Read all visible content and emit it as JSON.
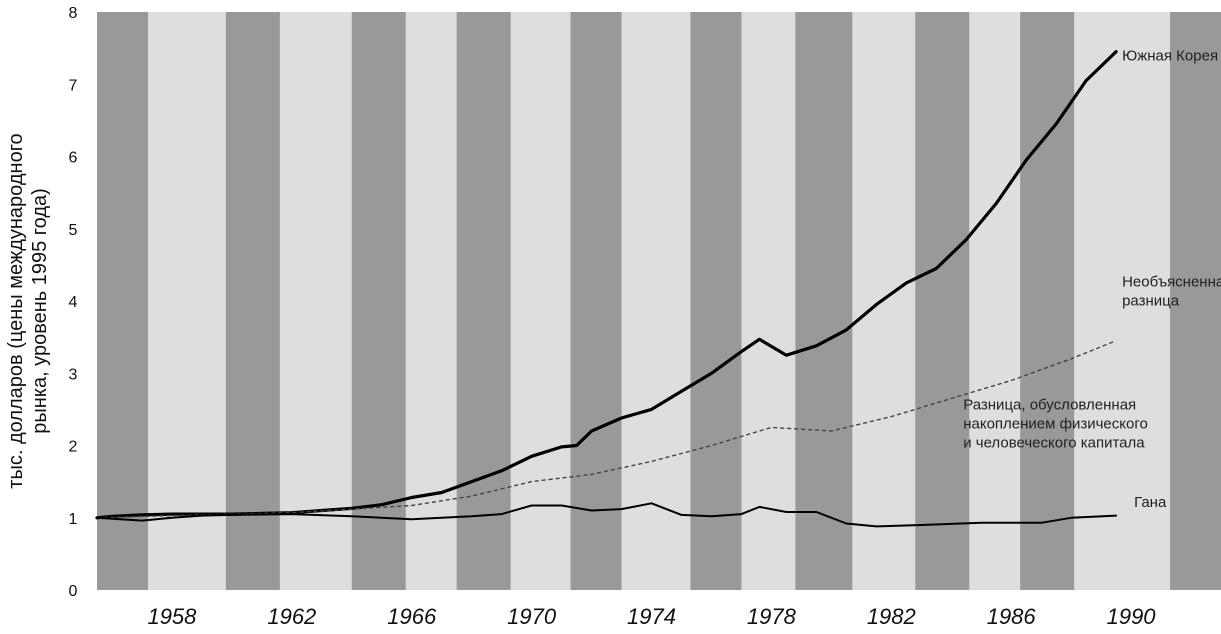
{
  "chart_data": {
    "type": "line",
    "ylabel": "тыс. долларов (цены международного рынка, уровень 1995 года)",
    "ylabel_lines": [
      "тыс. долларов (цены международного",
      "рынка, уровень 1995 года)"
    ],
    "ylim": [
      0,
      8
    ],
    "y_ticks": [
      0,
      1,
      2,
      3,
      4,
      5,
      6,
      7,
      8
    ],
    "xlim": [
      1955.5,
      1993
    ],
    "x_ticks": [
      1958,
      1962,
      1966,
      1970,
      1974,
      1978,
      1982,
      1986,
      1990
    ],
    "grid": false,
    "background": {
      "stripe_dark": "#999999",
      "stripe_light": "#dedede",
      "dark_bands": [
        [
          1955.5,
          1957.2
        ],
        [
          1959.8,
          1961.6
        ],
        [
          1964.0,
          1965.8
        ],
        [
          1967.5,
          1969.3
        ],
        [
          1971.3,
          1973.0
        ],
        [
          1975.3,
          1977.0
        ],
        [
          1978.8,
          1980.7
        ],
        [
          1982.8,
          1984.6
        ],
        [
          1986.3,
          1988.1
        ],
        [
          1991.3,
          1993.0
        ]
      ]
    },
    "series": [
      {
        "name": "Южная Корея",
        "color": "#000000",
        "style": "solid-thick",
        "points": [
          [
            1955.5,
            1.0
          ],
          [
            1956,
            1.02
          ],
          [
            1957,
            1.04
          ],
          [
            1958,
            1.05
          ],
          [
            1959,
            1.05
          ],
          [
            1960,
            1.05
          ],
          [
            1961,
            1.06
          ],
          [
            1962,
            1.07
          ],
          [
            1963,
            1.1
          ],
          [
            1964,
            1.13
          ],
          [
            1965,
            1.18
          ],
          [
            1966,
            1.28
          ],
          [
            1967,
            1.35
          ],
          [
            1968,
            1.5
          ],
          [
            1969,
            1.65
          ],
          [
            1970,
            1.85
          ],
          [
            1971,
            1.98
          ],
          [
            1971.5,
            2.0
          ],
          [
            1972,
            2.2
          ],
          [
            1973,
            2.38
          ],
          [
            1974,
            2.5
          ],
          [
            1975,
            2.75
          ],
          [
            1976,
            3.0
          ],
          [
            1977,
            3.3
          ],
          [
            1977.6,
            3.47
          ],
          [
            1978.5,
            3.25
          ],
          [
            1979.5,
            3.38
          ],
          [
            1980.5,
            3.6
          ],
          [
            1981.5,
            3.95
          ],
          [
            1982.5,
            4.25
          ],
          [
            1983.5,
            4.45
          ],
          [
            1984.5,
            4.85
          ],
          [
            1985.5,
            5.35
          ],
          [
            1986.5,
            5.95
          ],
          [
            1987.5,
            6.45
          ],
          [
            1988.5,
            7.05
          ],
          [
            1989.5,
            7.45
          ]
        ]
      },
      {
        "name": "",
        "color": "#444444",
        "style": "dotted",
        "points": [
          [
            1955.5,
            1.0
          ],
          [
            1958,
            1.03
          ],
          [
            1962,
            1.07
          ],
          [
            1966,
            1.17
          ],
          [
            1968,
            1.3
          ],
          [
            1970,
            1.5
          ],
          [
            1972,
            1.6
          ],
          [
            1974,
            1.78
          ],
          [
            1976,
            2.0
          ],
          [
            1978,
            2.25
          ],
          [
            1980,
            2.2
          ],
          [
            1982,
            2.4
          ],
          [
            1984,
            2.65
          ],
          [
            1986,
            2.9
          ],
          [
            1988,
            3.2
          ],
          [
            1989.5,
            3.45
          ]
        ]
      },
      {
        "name": "Гана",
        "color": "#000000",
        "style": "solid",
        "points": [
          [
            1955.5,
            1.0
          ],
          [
            1957,
            0.96
          ],
          [
            1958,
            1.0
          ],
          [
            1959,
            1.03
          ],
          [
            1960,
            1.04
          ],
          [
            1962,
            1.05
          ],
          [
            1964,
            1.02
          ],
          [
            1966,
            0.98
          ],
          [
            1968,
            1.02
          ],
          [
            1969,
            1.05
          ],
          [
            1970,
            1.17
          ],
          [
            1971,
            1.17
          ],
          [
            1972,
            1.1
          ],
          [
            1973,
            1.12
          ],
          [
            1974,
            1.2
          ],
          [
            1975,
            1.04
          ],
          [
            1976,
            1.02
          ],
          [
            1977,
            1.05
          ],
          [
            1977.6,
            1.15
          ],
          [
            1978.5,
            1.08
          ],
          [
            1979.5,
            1.08
          ],
          [
            1980.5,
            0.92
          ],
          [
            1981.5,
            0.88
          ],
          [
            1983,
            0.9
          ],
          [
            1985,
            0.93
          ],
          [
            1987,
            0.93
          ],
          [
            1988,
            1.0
          ],
          [
            1989.5,
            1.03
          ]
        ]
      }
    ],
    "annotations": [
      {
        "lines": [
          "Южная Корея"
        ],
        "x": 1989.7,
        "y": 7.33
      },
      {
        "lines": [
          "Необъясненная",
          "разница"
        ],
        "x": 1989.7,
        "y": 4.2
      },
      {
        "lines": [
          "Разница, обусловленная",
          "накоплением физического",
          "и человеческого капитала"
        ],
        "x": 1984.4,
        "y": 2.5
      },
      {
        "lines": [
          "Гана"
        ],
        "x": 1990.1,
        "y": 1.15
      }
    ]
  }
}
